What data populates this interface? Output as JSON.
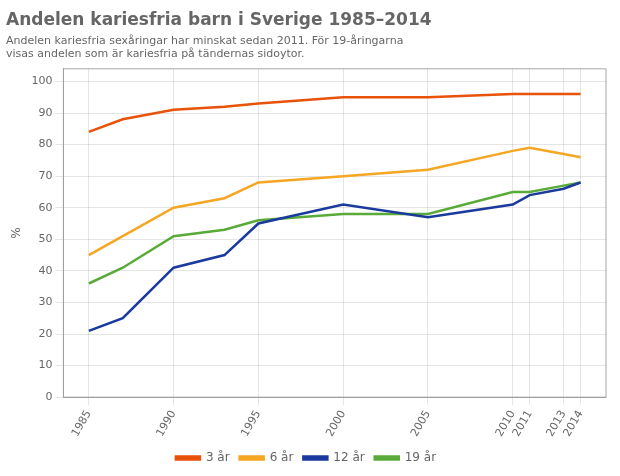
{
  "chart_data": {
    "type": "line",
    "title": "Andelen kariesfria barn i Sverige 1985–2014",
    "subtitle": "Andelen kariesfria sexåringar har minskat sedan 2011. För 19-åringarna\nvisas andelen som är kariesfria på tändernas sidoytor.",
    "ylabel": "%",
    "x": [
      1985,
      1987,
      1990,
      1993,
      1995,
      2000,
      2005,
      2010,
      2011,
      2013,
      2014
    ],
    "series": [
      {
        "name": "3 år",
        "color": "#e8520a",
        "values": [
          84,
          88,
          91,
          92,
          93,
          95,
          95,
          96,
          96,
          96,
          96
        ]
      },
      {
        "name": "6 år",
        "color": "#f5a623",
        "values": [
          45,
          51,
          60,
          63,
          68,
          70,
          72,
          78,
          79,
          77,
          76
        ]
      },
      {
        "name": "12 år",
        "color": "#1a3a9e",
        "values": [
          21,
          25,
          41,
          45,
          55,
          61,
          57,
          61,
          64,
          66,
          68
        ]
      },
      {
        "name": "19 år",
        "color": "#5aaa3a",
        "values": [
          36,
          41,
          51,
          53,
          56,
          58,
          58,
          65,
          65,
          67,
          68
        ]
      }
    ],
    "xlim": [
      1983.5,
      2015.5
    ],
    "ylim": [
      0,
      104
    ],
    "xticks": [
      1985,
      1990,
      1995,
      2000,
      2005,
      2010,
      2011,
      2013,
      2014
    ],
    "yticks": [
      0,
      10,
      20,
      30,
      40,
      50,
      60,
      70,
      80,
      90,
      100
    ],
    "grid": true,
    "legend": "bottom"
  }
}
